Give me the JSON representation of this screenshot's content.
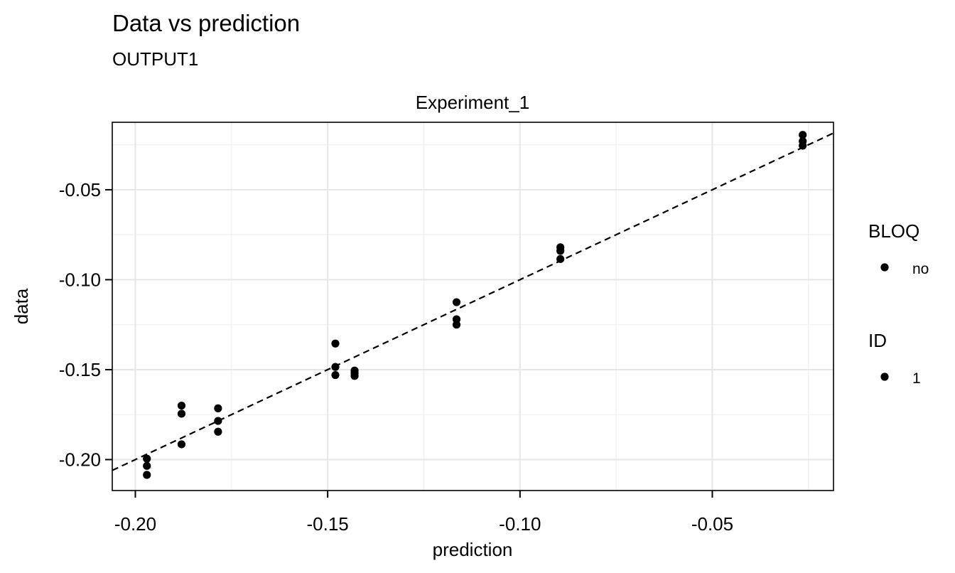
{
  "chart_data": {
    "type": "scatter",
    "title": "Data vs prediction",
    "subtitle": "OUTPUT1",
    "facet_label": "Experiment_1",
    "xlabel": "prediction",
    "ylabel": "data",
    "xlim": [
      -0.206,
      -0.0185
    ],
    "ylim": [
      -0.2172,
      -0.0125
    ],
    "x_ticks": [
      -0.2,
      -0.15,
      -0.1,
      -0.05
    ],
    "x_tick_labels": [
      "-0.20",
      "-0.15",
      "-0.10",
      "-0.05"
    ],
    "y_ticks": [
      -0.2,
      -0.15,
      -0.1,
      -0.05
    ],
    "y_tick_labels": [
      "-0.20",
      "-0.15",
      "-0.10",
      "-0.05"
    ],
    "grid": true,
    "reference_line": {
      "type": "identity",
      "style": "dashed"
    },
    "points": [
      {
        "x": -0.197,
        "y": -0.1995
      },
      {
        "x": -0.197,
        "y": -0.2035
      },
      {
        "x": -0.197,
        "y": -0.2085
      },
      {
        "x": -0.188,
        "y": -0.17
      },
      {
        "x": -0.188,
        "y": -0.1745
      },
      {
        "x": -0.188,
        "y": -0.1915
      },
      {
        "x": -0.1785,
        "y": -0.1715
      },
      {
        "x": -0.1785,
        "y": -0.1785
      },
      {
        "x": -0.1785,
        "y": -0.1845
      },
      {
        "x": -0.148,
        "y": -0.1355
      },
      {
        "x": -0.148,
        "y": -0.1485
      },
      {
        "x": -0.148,
        "y": -0.153
      },
      {
        "x": -0.143,
        "y": -0.1505
      },
      {
        "x": -0.143,
        "y": -0.152
      },
      {
        "x": -0.143,
        "y": -0.1535
      },
      {
        "x": -0.1165,
        "y": -0.1125
      },
      {
        "x": -0.1165,
        "y": -0.122
      },
      {
        "x": -0.1165,
        "y": -0.125
      },
      {
        "x": -0.0895,
        "y": -0.082
      },
      {
        "x": -0.0895,
        "y": -0.084
      },
      {
        "x": -0.0895,
        "y": -0.0885
      },
      {
        "x": -0.0265,
        "y": -0.0195
      },
      {
        "x": -0.0265,
        "y": -0.023
      },
      {
        "x": -0.0265,
        "y": -0.0255
      }
    ],
    "legend": {
      "placement": "right",
      "groups": [
        {
          "title": "BLOQ",
          "entries": [
            "no"
          ]
        },
        {
          "title": "ID",
          "entries": [
            "1"
          ]
        }
      ]
    }
  }
}
